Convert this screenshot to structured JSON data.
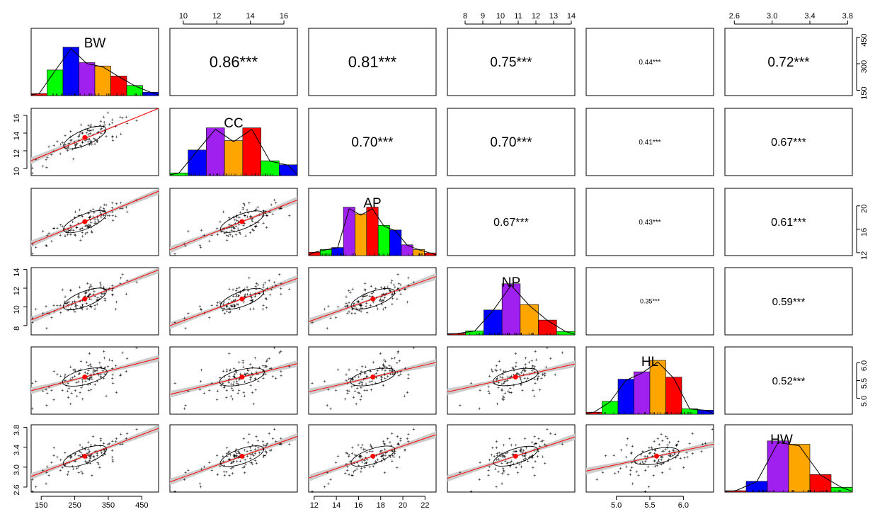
{
  "chart_data": {
    "type": "scatter",
    "variables": [
      "BW",
      "CC",
      "AP",
      "NP",
      "HL",
      "HW"
    ],
    "panel_labels": [
      "BW",
      "CC",
      "AP",
      "NP",
      "HL",
      "HW"
    ],
    "ranges": {
      "BW": [
        120,
        500
      ],
      "CC": [
        9.2,
        16.8
      ],
      "AP": [
        11.5,
        23.0
      ],
      "NP": [
        7.0,
        14.2
      ],
      "HL": [
        4.55,
        6.45
      ],
      "HW": [
        2.5,
        3.85
      ]
    },
    "axis_ticks": {
      "BW": [
        "150",
        "250",
        "350",
        "450"
      ],
      "CC": [
        "10",
        "12",
        "14",
        "16"
      ],
      "AP": [
        "12",
        "14",
        "16",
        "18",
        "20",
        "22"
      ],
      "NP": [
        "8",
        "9",
        "10",
        "11",
        "12",
        "13",
        "14"
      ],
      "HL": [
        "5.0",
        "5.5",
        "6.0"
      ],
      "HW": [
        "2.6",
        "3.0",
        "3.4",
        "3.8"
      ]
    },
    "right_axis_ticks": {
      "BW": [
        "150",
        "300",
        "450"
      ],
      "AP": [
        "12",
        "16",
        "20"
      ],
      "HL": [
        "5.0",
        "5.5",
        "6.0"
      ]
    },
    "left_axis_ticks": {
      "CC": [
        "10",
        "12",
        "14",
        "16"
      ],
      "NP": [
        "8",
        "10",
        "12",
        "14"
      ],
      "HW": [
        "2.6",
        "3.0",
        "3.4",
        "3.8"
      ]
    },
    "means": {
      "BW": 280,
      "CC": 13.5,
      "AP": 17.3,
      "NP": 10.85,
      "HL": 5.6,
      "HW": 3.22
    },
    "correlations": [
      {
        "row": 1,
        "col": 2,
        "label": "0.86***",
        "r": 0.86
      },
      {
        "row": 1,
        "col": 3,
        "label": "0.81***",
        "r": 0.81
      },
      {
        "row": 1,
        "col": 4,
        "label": "0.75***",
        "r": 0.75
      },
      {
        "row": 1,
        "col": 5,
        "label": "0.44***",
        "r": 0.44
      },
      {
        "row": 1,
        "col": 6,
        "label": "0.72***",
        "r": 0.72
      },
      {
        "row": 2,
        "col": 3,
        "label": "0.70***",
        "r": 0.7
      },
      {
        "row": 2,
        "col": 4,
        "label": "0.70***",
        "r": 0.7
      },
      {
        "row": 2,
        "col": 5,
        "label": "0.41***",
        "r": 0.41
      },
      {
        "row": 2,
        "col": 6,
        "label": "0.67***",
        "r": 0.67
      },
      {
        "row": 3,
        "col": 4,
        "label": "0.67***",
        "r": 0.67
      },
      {
        "row": 3,
        "col": 5,
        "label": "0.43***",
        "r": 0.43
      },
      {
        "row": 3,
        "col": 6,
        "label": "0.61***",
        "r": 0.61
      },
      {
        "row": 4,
        "col": 5,
        "label": "0.35***",
        "r": 0.35
      },
      {
        "row": 4,
        "col": 6,
        "label": "0.59***",
        "r": 0.59
      },
      {
        "row": 5,
        "col": 6,
        "label": "0.52***",
        "r": 0.52
      }
    ],
    "histograms": {
      "BW": [
        0.03,
        0.38,
        0.72,
        0.49,
        0.44,
        0.29,
        0.15,
        0.05
      ],
      "CC": [
        0.04,
        0.38,
        0.71,
        0.52,
        0.71,
        0.22,
        0.16
      ],
      "AP": [
        0.05,
        0.09,
        0.12,
        0.72,
        0.62,
        0.72,
        0.45,
        0.38,
        0.16,
        0.09,
        0.04
      ],
      "NP": [
        0.02,
        0.06,
        0.37,
        0.76,
        0.45,
        0.22,
        0.05
      ],
      "HL": [
        0.03,
        0.19,
        0.52,
        0.63,
        0.8,
        0.55,
        0.08,
        0.06
      ],
      "HW": [
        0.02,
        0.16,
        0.76,
        0.71,
        0.26,
        0.07
      ]
    },
    "histogram_colors": {
      "BW": [
        "#ff0000",
        "#00ff00",
        "#0000ff",
        "#a020f0",
        "#ffa500",
        "#ff0000",
        "#00ff00",
        "#0000ff"
      ],
      "CC": [
        "#00ff00",
        "#0000ff",
        "#a020f0",
        "#ffa500",
        "#ff0000",
        "#00ff00",
        "#0000ff"
      ],
      "AP": [
        "#ff0000",
        "#00ff00",
        "#0000ff",
        "#a020f0",
        "#ffa500",
        "#ff0000",
        "#00ff00",
        "#0000ff",
        "#a020f0",
        "#ffa500",
        "#ff0000"
      ],
      "NP": [
        "#ff0000",
        "#00ff00",
        "#0000ff",
        "#a020f0",
        "#ffa500",
        "#ff0000",
        "#00ff00"
      ],
      "HL": [
        "#ff0000",
        "#00ff00",
        "#0000ff",
        "#a020f0",
        "#ffa500",
        "#ff0000",
        "#00ff00",
        "#0000ff"
      ],
      "HW": [
        "#ff0000",
        "#0000ff",
        "#a020f0",
        "#ffa500",
        "#ff0000",
        "#00ff00"
      ]
    },
    "colors": {
      "point": "#000000",
      "fit_line": "#ff0000",
      "band": "#cccccc",
      "mean": "#ff0000",
      "frame": "#000000"
    },
    "grid": false,
    "legend": "none"
  }
}
